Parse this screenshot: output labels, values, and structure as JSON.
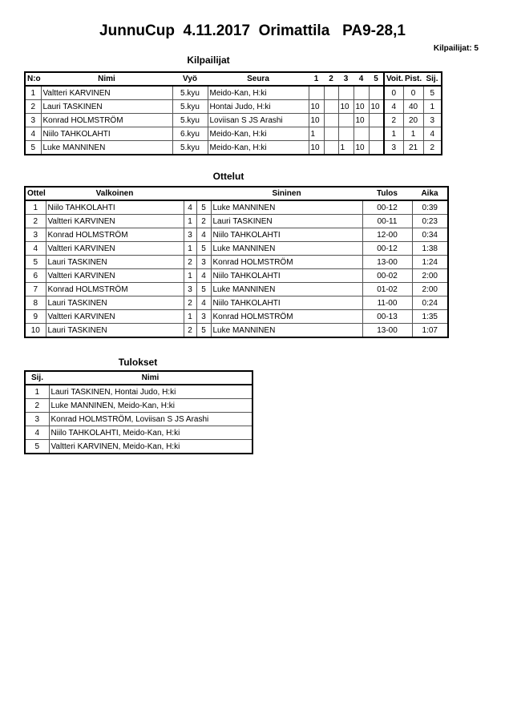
{
  "title": "JunnuCup  4.11.2017  Orimattila   PA9-28,1",
  "competitor_count": "Kilpailijat: 5",
  "competitors": {
    "heading": "Kilpailijat",
    "headers": [
      "N:o",
      "Nimi",
      "Vyö",
      "Seura",
      "1",
      "2",
      "3",
      "4",
      "5",
      "Voit.",
      "Pist.",
      "Sij."
    ],
    "rows": [
      [
        "1",
        "Valtteri KARVINEN",
        "5.kyu",
        "Meido-Kan, H:ki",
        "",
        "",
        "",
        "",
        "",
        "0",
        "0",
        "5"
      ],
      [
        "2",
        "Lauri TASKINEN",
        "5.kyu",
        "Hontai Judo, H:ki",
        "10",
        "",
        "10",
        "10",
        "10",
        "4",
        "40",
        "1"
      ],
      [
        "3",
        "Konrad HOLMSTRÖM",
        "5.kyu",
        "Loviisan S JS Arashi",
        "10",
        "",
        "",
        "10",
        "",
        "2",
        "20",
        "3"
      ],
      [
        "4",
        "Niilo TAHKOLAHTI",
        "6.kyu",
        "Meido-Kan, H:ki",
        "1",
        "",
        "",
        "",
        "",
        "1",
        "1",
        "4"
      ],
      [
        "5",
        "Luke MANNINEN",
        "5.kyu",
        "Meido-Kan, H:ki",
        "10",
        "",
        "1",
        "10",
        "",
        "3",
        "21",
        "2"
      ]
    ]
  },
  "matches": {
    "heading": "Ottelut",
    "headers": [
      "Ottelu",
      "Valkoinen",
      "",
      "",
      "Sininen",
      "Tulos",
      "Aika"
    ],
    "rows": [
      [
        "1",
        "Niilo TAHKOLAHTI",
        "4",
        "5",
        "Luke MANNINEN",
        "00-12",
        "0:39"
      ],
      [
        "2",
        "Valtteri KARVINEN",
        "1",
        "2",
        "Lauri TASKINEN",
        "00-11",
        "0:23"
      ],
      [
        "3",
        "Konrad HOLMSTRÖM",
        "3",
        "4",
        "Niilo TAHKOLAHTI",
        "12-00",
        "0:34"
      ],
      [
        "4",
        "Valtteri KARVINEN",
        "1",
        "5",
        "Luke MANNINEN",
        "00-12",
        "1:38"
      ],
      [
        "5",
        "Lauri TASKINEN",
        "2",
        "3",
        "Konrad HOLMSTRÖM",
        "13-00",
        "1:24"
      ],
      [
        "6",
        "Valtteri KARVINEN",
        "1",
        "4",
        "Niilo TAHKOLAHTI",
        "00-02",
        "2:00"
      ],
      [
        "7",
        "Konrad HOLMSTRÖM",
        "3",
        "5",
        "Luke MANNINEN",
        "01-02",
        "2:00"
      ],
      [
        "8",
        "Lauri TASKINEN",
        "2",
        "4",
        "Niilo TAHKOLAHTI",
        "11-00",
        "0:24"
      ],
      [
        "9",
        "Valtteri KARVINEN",
        "1",
        "3",
        "Konrad HOLMSTRÖM",
        "00-13",
        "1:35"
      ],
      [
        "10",
        "Lauri TASKINEN",
        "2",
        "5",
        "Luke MANNINEN",
        "13-00",
        "1:07"
      ]
    ]
  },
  "results": {
    "heading": "Tulokset",
    "headers": [
      "Sij.",
      "Nimi"
    ],
    "rows": [
      [
        "1",
        "Lauri TASKINEN, Hontai Judo, H:ki"
      ],
      [
        "2",
        "Luke MANNINEN, Meido-Kan, H:ki"
      ],
      [
        "3",
        "Konrad HOLMSTRÖM, Loviisan S JS Arashi"
      ],
      [
        "4",
        "Niilo TAHKOLAHTI, Meido-Kan, H:ki"
      ],
      [
        "5",
        "Valtteri KARVINEN, Meido-Kan, H:ki"
      ]
    ]
  }
}
